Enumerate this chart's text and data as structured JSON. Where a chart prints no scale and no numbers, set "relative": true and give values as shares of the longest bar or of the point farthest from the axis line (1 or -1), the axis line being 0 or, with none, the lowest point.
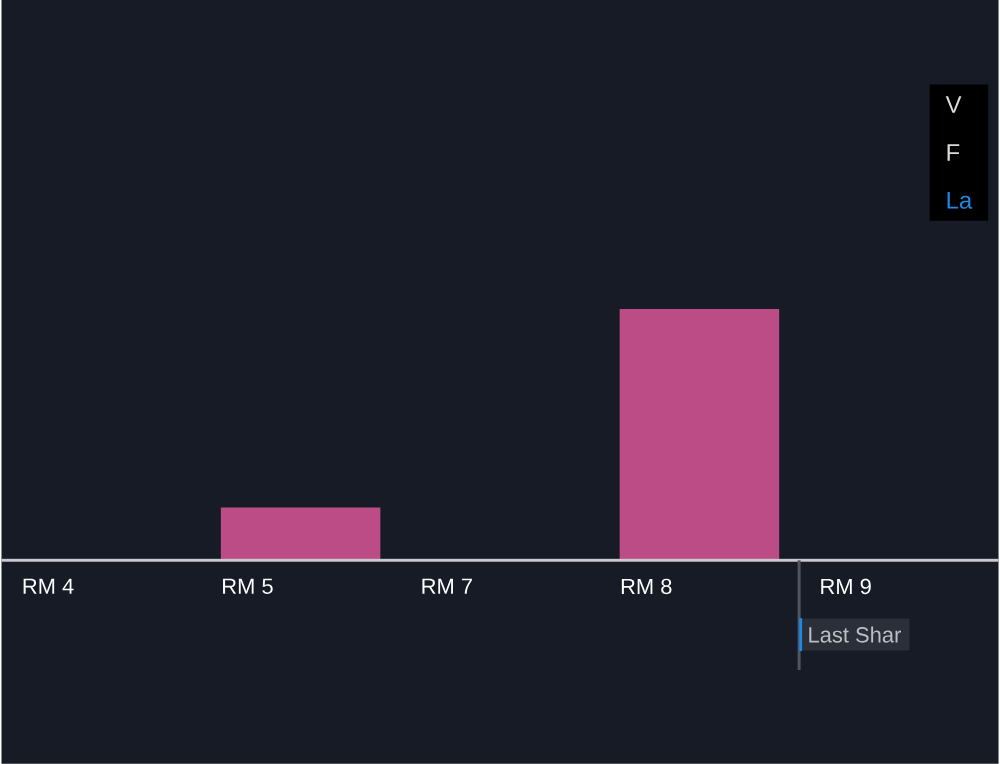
{
  "chart_data": {
    "type": "bar",
    "relative": true,
    "categories": [
      "RM 4",
      "RM 5",
      "RM 7",
      "RM 8",
      "RM 9"
    ],
    "values": [
      0,
      0.21,
      0,
      1,
      0
    ],
    "color": "#bc4c86",
    "annotations": [
      "V",
      "F",
      "La",
      "Last Shar"
    ]
  }
}
